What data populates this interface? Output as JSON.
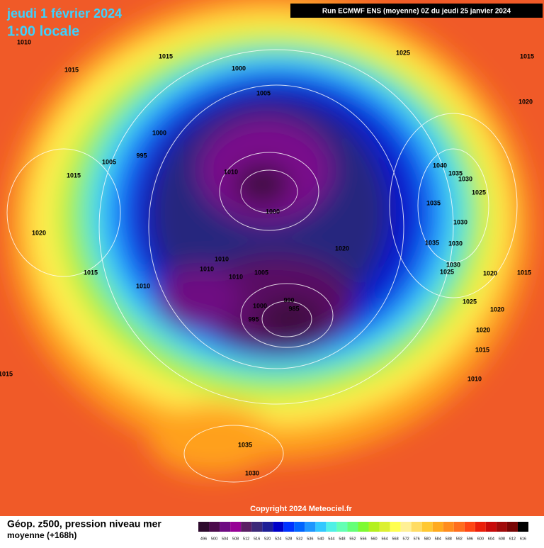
{
  "header": {
    "date": "jeudi 1 février 2024",
    "time": "1:00 locale",
    "run": "Run ECMWF ENS (moyenne) 0Z du jeudi 25 janvier 2024"
  },
  "map": {
    "isobar_labels": [
      1010,
      1015,
      1015,
      1000,
      1025,
      1015,
      1005,
      1020,
      1000,
      995,
      1005,
      1010,
      1040,
      1035,
      1030,
      1015,
      1025,
      1000,
      1035,
      1030,
      1020,
      1035,
      1030,
      1020,
      1010,
      1010,
      1005,
      1010,
      1030,
      1025,
      1020,
      1015,
      1015,
      1010,
      990,
      985,
      1000,
      1025,
      1020,
      995,
      1020,
      1015,
      1015,
      1010,
      1035,
      1030
    ],
    "copyright": "Copyright 2024 Meteociel.fr"
  },
  "footer": {
    "title": "Géop. z500, pression niveau mer",
    "subtitle": "moyenne  (+168h)"
  },
  "legend": {
    "values": [
      496,
      500,
      504,
      508,
      512,
      516,
      520,
      524,
      528,
      532,
      536,
      540,
      544,
      548,
      552,
      556,
      560,
      564,
      568,
      572,
      576,
      580,
      584,
      588,
      592,
      596,
      600,
      604,
      608,
      612,
      616
    ],
    "colors": [
      "#2d0a2d",
      "#4b0a4b",
      "#6e0a82",
      "#960096",
      "#5a1e64",
      "#3c2878",
      "#1e1e96",
      "#0000c8",
      "#0032ff",
      "#0064ff",
      "#1e96ff",
      "#32c8ff",
      "#50f0e6",
      "#64ffb4",
      "#64ff78",
      "#7dfa32",
      "#b4f01e",
      "#dcf032",
      "#ffff50",
      "#fff096",
      "#ffdc64",
      "#ffc832",
      "#ffaa1e",
      "#ff8c1e",
      "#ff6e1e",
      "#ff4614",
      "#eb1e0a",
      "#c80a0a",
      "#a00a0a",
      "#780505",
      "#000000"
    ]
  }
}
